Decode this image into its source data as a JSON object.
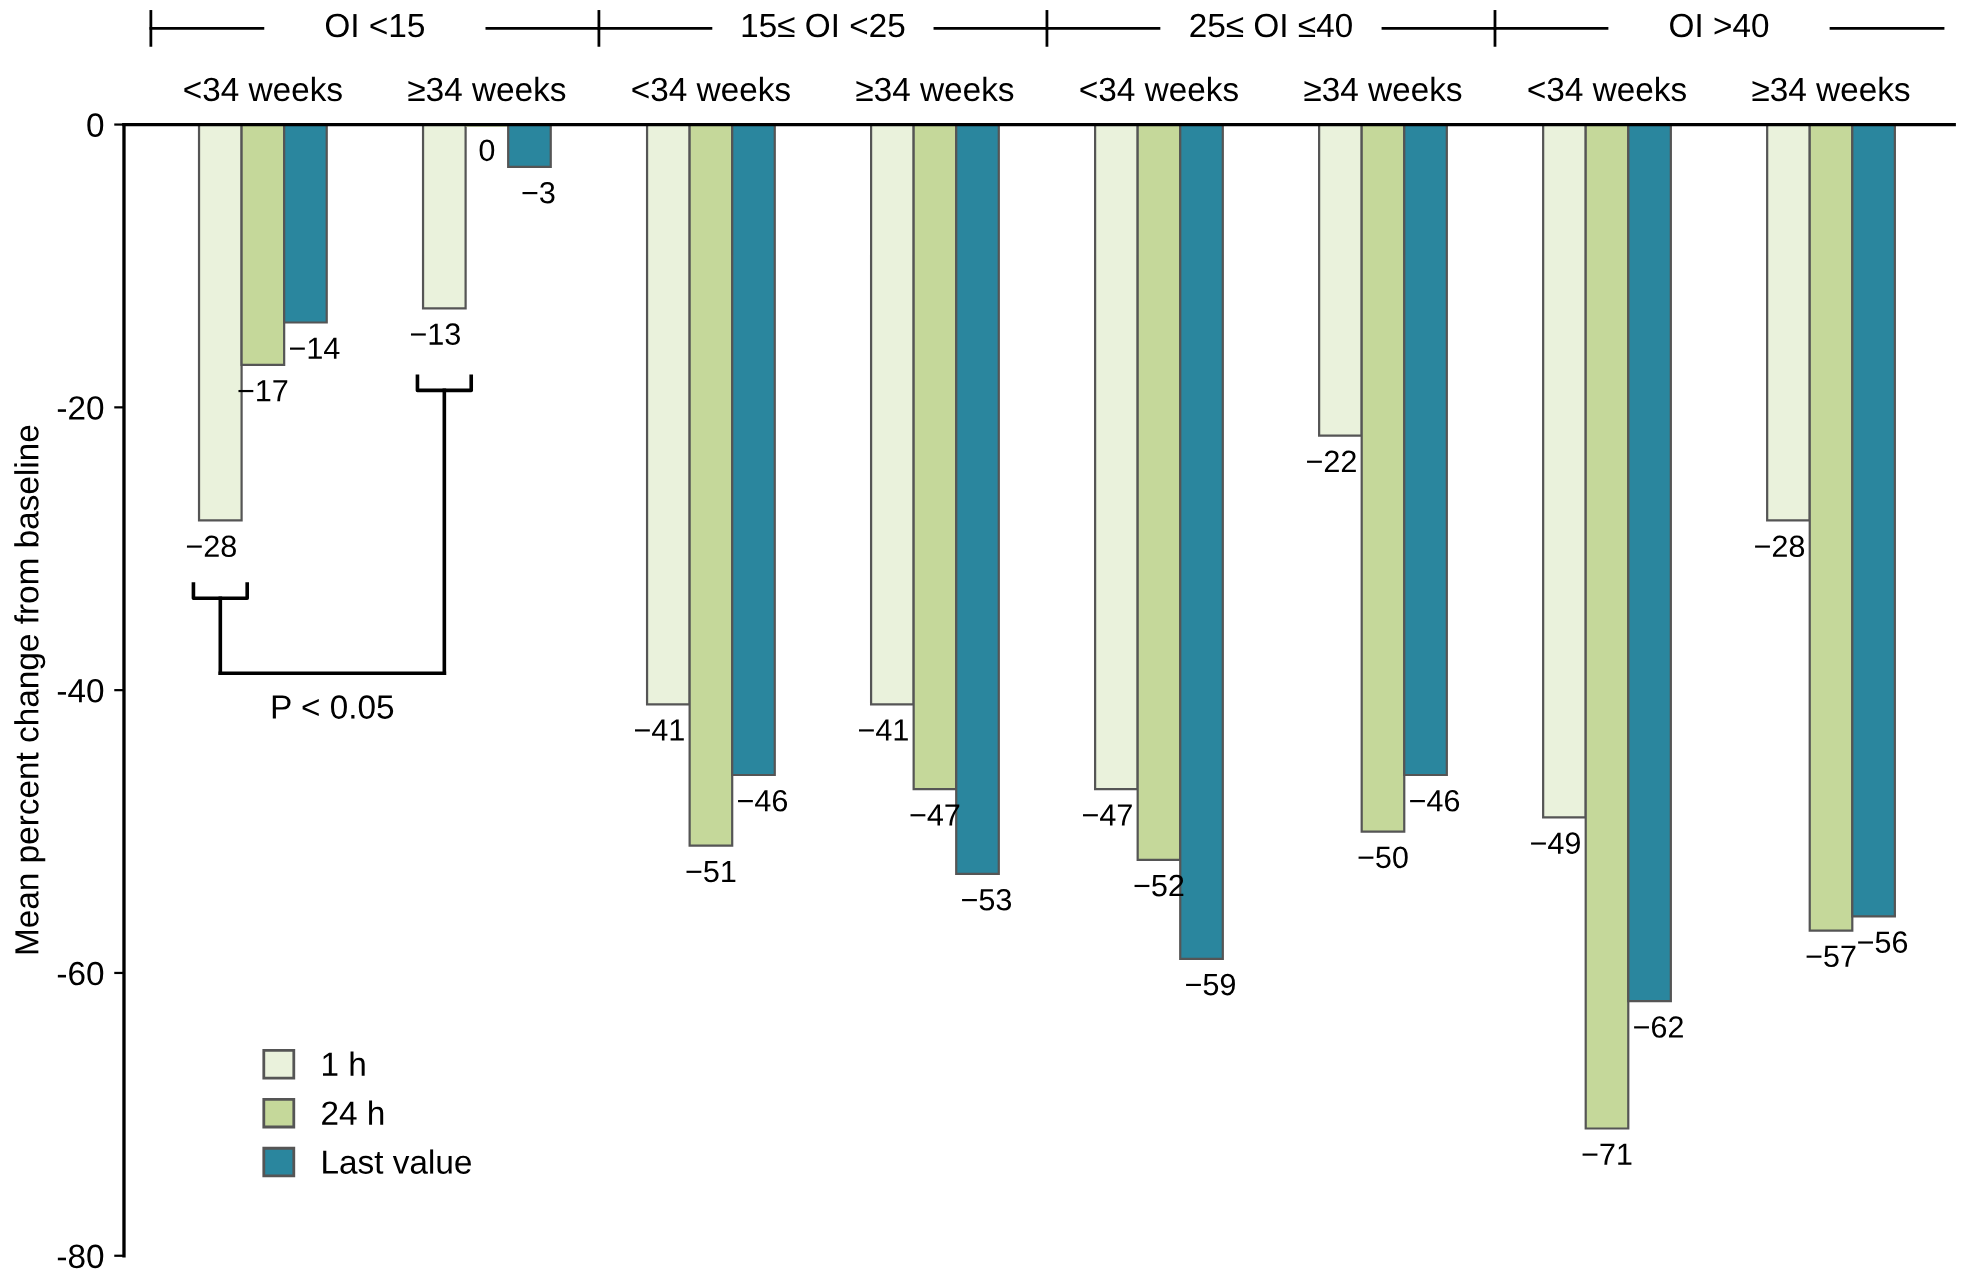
{
  "chart_data": {
    "type": "bar",
    "ylabel": "Mean percent change from baseline",
    "categories": [
      "<34 weeks",
      "≥34 weeks",
      "<34 weeks",
      "≥34 weeks",
      "<34 weeks",
      "≥34 weeks",
      "<34 weeks",
      "≥34 weeks"
    ],
    "series": [
      {
        "name": "1 h",
        "color": "#eaf2dc",
        "values": [
          -28,
          -13,
          -41,
          -41,
          -47,
          -22,
          -49,
          -28
        ]
      },
      {
        "name": "24 h",
        "color": "#c5d89a",
        "values": [
          -17,
          0,
          -51,
          -47,
          -52,
          -50,
          -71,
          -57
        ]
      },
      {
        "name": "Last value",
        "color": "#2a869e",
        "values": [
          -14,
          -3,
          -46,
          -53,
          -59,
          -46,
          -62,
          -56
        ]
      }
    ],
    "ylim": [
      -80,
      0
    ],
    "yticks": [
      0,
      -20,
      -40,
      -60,
      -80
    ],
    "data_labels": true,
    "legend": "bottom left",
    "grid": false,
    "annotations": [
      "OI <15",
      "15≤ OI <25",
      "25≤ OI ≤40",
      "OI >40",
      "P < 0.05"
    ]
  }
}
